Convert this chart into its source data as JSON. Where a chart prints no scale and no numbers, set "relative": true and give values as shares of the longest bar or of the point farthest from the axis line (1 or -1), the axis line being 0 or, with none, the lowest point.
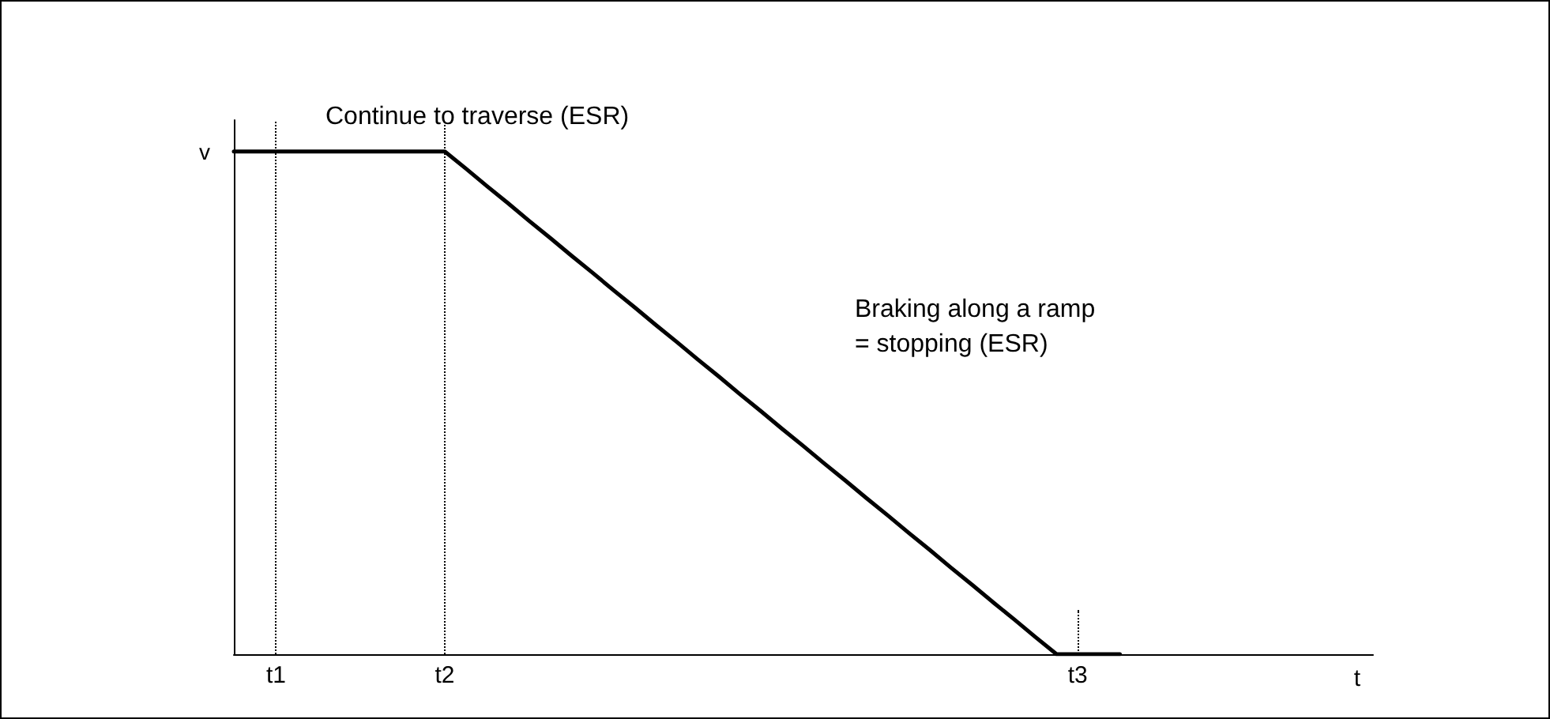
{
  "chart_data": {
    "type": "line",
    "relative": true,
    "xlabel": "t",
    "ylabel": "v",
    "categories": [
      null,
      null,
      "t1",
      null,
      null,
      null,
      null,
      null,
      null,
      null,
      "t2",
      null,
      null,
      null,
      null,
      null,
      null,
      null,
      null,
      null,
      null,
      null,
      null,
      null,
      null,
      null,
      null,
      null,
      null,
      null,
      null,
      null,
      null,
      null,
      null,
      null,
      null,
      null,
      null,
      null,
      "t3",
      null,
      null,
      null,
      null,
      null,
      null,
      null,
      null,
      null,
      null,
      null,
      null,
      null,
      null
    ],
    "series": [
      {
        "color": "#000000",
        "values": [
          1,
          1,
          1,
          1,
          1,
          1,
          1,
          1,
          1,
          1,
          1,
          0.966,
          0.931,
          0.897,
          0.862,
          0.828,
          0.793,
          0.759,
          0.724,
          0.69,
          0.655,
          0.621,
          0.586,
          0.552,
          0.517,
          0.483,
          0.448,
          0.414,
          0.379,
          0.345,
          0.31,
          0.276,
          0.241,
          0.207,
          0.172,
          0.138,
          0.103,
          0.069,
          0.034,
          0,
          0,
          0,
          0,
          null,
          null,
          null,
          null,
          null,
          null,
          null,
          null,
          null,
          null,
          null,
          null
        ]
      }
    ],
    "ref_lines": [
      {
        "axis": "x",
        "value": "t1",
        "label": null,
        "color": "#000000",
        "line_style": "dotted"
      },
      {
        "axis": "x",
        "value": "t2",
        "label": null,
        "color": "#000000",
        "line_style": "dotted"
      }
    ],
    "annotations": [
      "Continue to traverse (ESR)",
      "Braking along a ramp\n= stopping (ESR)"
    ],
    "grid": false,
    "marker": "none",
    "line_style": "solid"
  }
}
